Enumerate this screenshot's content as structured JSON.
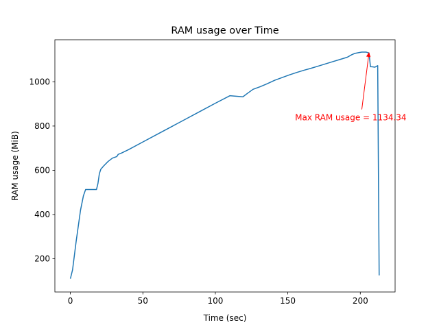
{
  "chart_data": {
    "type": "line",
    "title": "RAM usage over Time",
    "xlabel": "Time (sec)",
    "ylabel": "RAM usage (MiB)",
    "xlim": [
      -10.7,
      224
    ],
    "ylim": [
      50,
      1190
    ],
    "xticks": [
      0,
      50,
      100,
      150,
      200
    ],
    "yticks": [
      200,
      400,
      600,
      800,
      1000
    ],
    "grid": false,
    "series": [
      {
        "color": "#1f77b4",
        "x": [
          0,
          1.5,
          4,
          7,
          9,
          10.5,
          13,
          16,
          18,
          19,
          20,
          21,
          23,
          26,
          29,
          32,
          33,
          35,
          40,
          50,
          60,
          70,
          80,
          90,
          100,
          110,
          119,
          122,
          126,
          131,
          136,
          141,
          146,
          151,
          156,
          161,
          166,
          171,
          176,
          181,
          186,
          191,
          194,
          196,
          199,
          201,
          204,
          206,
          207,
          208,
          210,
          212,
          213
        ],
        "y": [
          110,
          150,
          280,
          420,
          485,
          513,
          513,
          513,
          513,
          540,
          585,
          605,
          620,
          640,
          655,
          662,
          672,
          677,
          693,
          728,
          763,
          798,
          833,
          868,
          903,
          937,
          932,
          947,
          966,
          978,
          992,
          1007,
          1019,
          1031,
          1042,
          1052,
          1061,
          1071,
          1081,
          1091,
          1101,
          1111,
          1122,
          1128,
          1132,
          1134.34,
          1134.34,
          1130,
          1068,
          1068,
          1066,
          1073,
          125
        ]
      }
    ],
    "annotations": [
      {
        "text": "Max RAM usage = 1134.34",
        "color": "#ff0000",
        "point": [
          206,
          1134.34
        ],
        "text_pos": [
          155,
          838
        ]
      }
    ]
  }
}
